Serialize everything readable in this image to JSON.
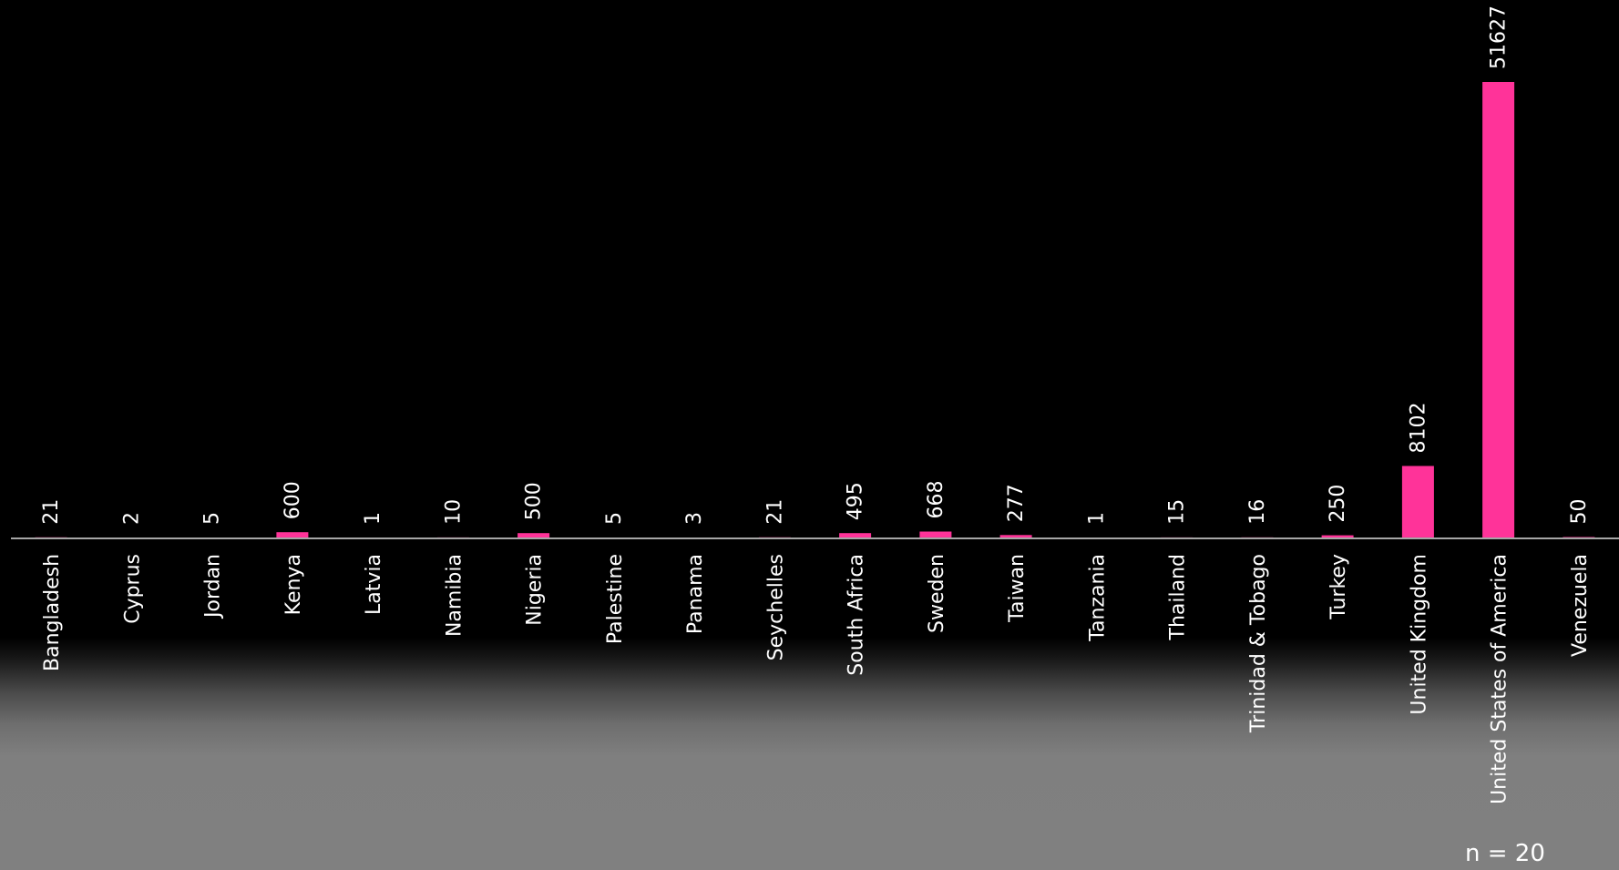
{
  "chart_data": {
    "type": "bar",
    "categories": [
      "Bangladesh",
      "Cyprus",
      "Jordan",
      "Kenya",
      "Latvia",
      "Namibia",
      "Nigeria",
      "Palestine",
      "Panama",
      "Seychelles",
      "South Africa",
      "Sweden",
      "Taiwan",
      "Tanzania",
      "Thailand",
      "Trinidad & Tobago",
      "Turkey",
      "United Kingdom",
      "United States of America",
      "Venezuela"
    ],
    "values": [
      21,
      2,
      5,
      600,
      1,
      10,
      500,
      5,
      3,
      21,
      495,
      668,
      277,
      1,
      15,
      16,
      250,
      8102,
      51627,
      50
    ],
    "value_labels": [
      "21",
      "2",
      "5",
      "600",
      "1",
      "10",
      "500",
      "5",
      "3",
      "21",
      "495",
      "668",
      "277",
      "1",
      "15",
      "16",
      "250",
      "8102",
      "51627",
      "50"
    ],
    "ylim": [
      0,
      51627
    ],
    "grid": false,
    "legend": "none",
    "bar_color": "#FF3399",
    "axis_color": "#A6A6A6",
    "note": "n = 20"
  }
}
